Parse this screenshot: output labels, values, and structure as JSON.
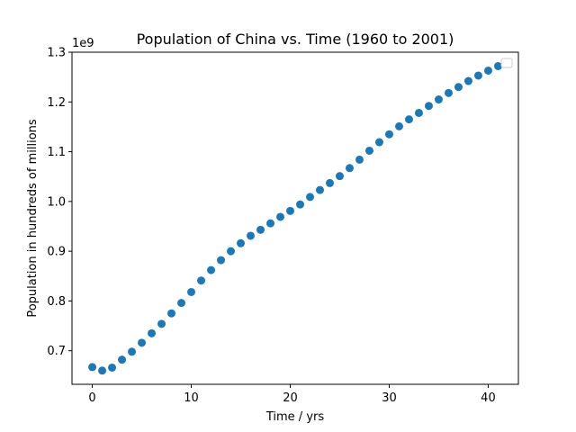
{
  "chart_data": {
    "type": "scatter",
    "title": "Population of China vs. Time (1960 to 2001)",
    "xlabel": "Time / yrs",
    "ylabel": "Population in hundreds of millions",
    "y_offset_label": "1e9",
    "xlim": [
      -2.05,
      43.05
    ],
    "ylim": [
      0.6325,
      1.3
    ],
    "xticks": [
      0,
      10,
      20,
      30,
      40
    ],
    "xtick_labels": [
      "0",
      "10",
      "20",
      "30",
      "40"
    ],
    "yticks": [
      0.7,
      0.8,
      0.9,
      1.0,
      1.1,
      1.2,
      1.3
    ],
    "ytick_labels": [
      "0.7",
      "0.8",
      "0.9",
      "1.0",
      "1.1",
      "1.2",
      "1.3"
    ],
    "grid": false,
    "legend": "top-right",
    "marker_color": "#1f77b4",
    "series": [
      {
        "x": [
          0,
          1,
          2,
          3,
          4,
          5,
          6,
          7,
          8,
          9,
          10,
          11,
          12,
          13,
          14,
          15,
          16,
          17,
          18,
          19,
          20,
          21,
          22,
          23,
          24,
          25,
          26,
          27,
          28,
          29,
          30,
          31,
          32,
          33,
          34,
          35,
          36,
          37,
          38,
          39,
          40,
          41
        ],
        "y": [
          0.667,
          0.66,
          0.666,
          0.682,
          0.698,
          0.716,
          0.735,
          0.754,
          0.775,
          0.796,
          0.818,
          0.841,
          0.862,
          0.882,
          0.9,
          0.916,
          0.931,
          0.943,
          0.956,
          0.969,
          0.981,
          0.994,
          1.009,
          1.023,
          1.037,
          1.051,
          1.067,
          1.084,
          1.102,
          1.119,
          1.135,
          1.151,
          1.165,
          1.178,
          1.192,
          1.205,
          1.218,
          1.23,
          1.242,
          1.253,
          1.263,
          1.272
        ]
      }
    ]
  }
}
